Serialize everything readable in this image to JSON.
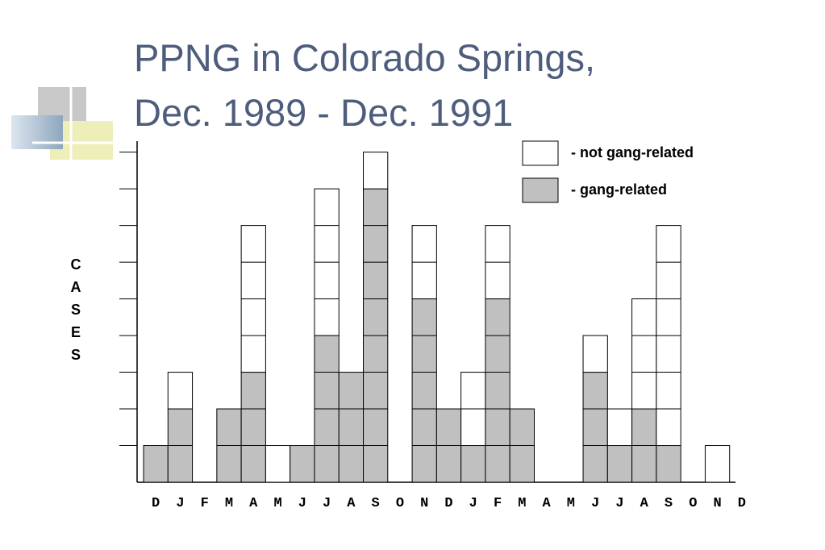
{
  "chart_data": {
    "type": "stacked_bar",
    "title": [
      "PPNG in Colorado Springs,",
      "Dec. 1989 - Dec. 1991"
    ],
    "y_label": "CASES",
    "categories": [
      "D",
      "J",
      "F",
      "M",
      "A",
      "M",
      "J",
      "J",
      "A",
      "S",
      "O",
      "N",
      "D",
      "J",
      "F",
      "M",
      "A",
      "M",
      "J",
      "J",
      "A",
      "S",
      "O",
      "N",
      "D"
    ],
    "series": [
      {
        "name": "- gang-related",
        "color": "#c0c0c0",
        "values": [
          1,
          2,
          0,
          2,
          3,
          0,
          1,
          4,
          3,
          8,
          0,
          5,
          2,
          1,
          5,
          2,
          0,
          0,
          3,
          1,
          2,
          1,
          0,
          0,
          0
        ]
      },
      {
        "name": "- not gang-related",
        "color": "#ffffff",
        "values": [
          0,
          1,
          0,
          0,
          4,
          1,
          0,
          4,
          0,
          1,
          0,
          2,
          0,
          2,
          2,
          0,
          0,
          0,
          1,
          1,
          3,
          6,
          0,
          1,
          0
        ]
      }
    ],
    "ylim": [
      0,
      9.3
    ],
    "yticks": [
      1,
      2,
      3,
      4,
      5,
      6,
      7,
      8,
      9
    ]
  }
}
